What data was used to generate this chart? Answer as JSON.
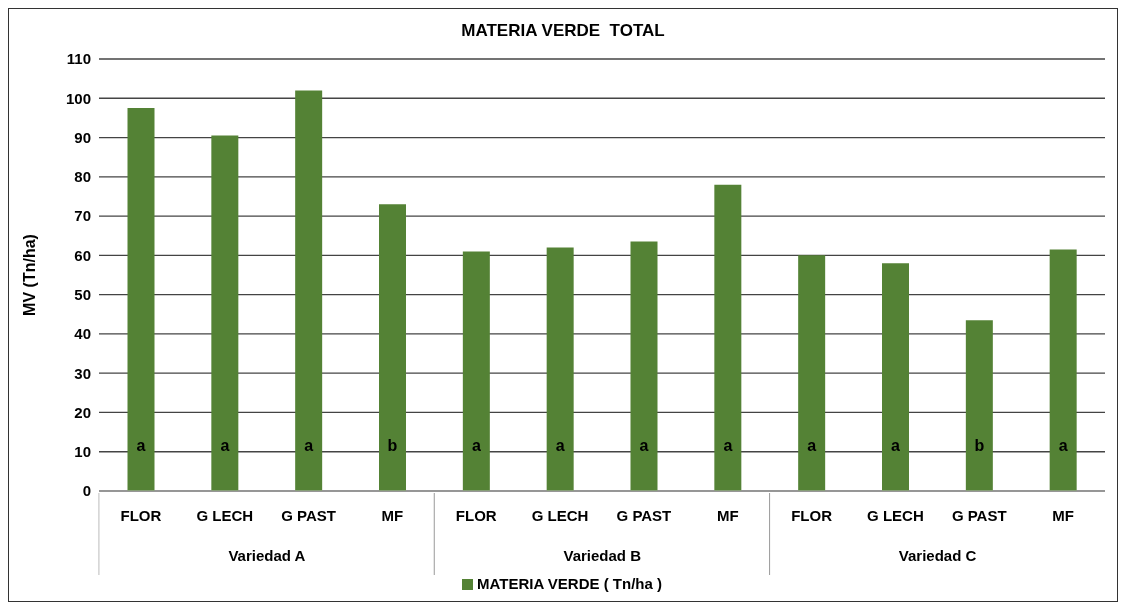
{
  "chart_data": {
    "type": "bar",
    "title": "MATERIA VERDE  TOTAL",
    "ylabel": "MV  (Tn/ha)",
    "categories": [
      "FLOR",
      "G LECH",
      "G PAST",
      "MF",
      "FLOR",
      "G LECH",
      "G PAST",
      "MF",
      "FLOR",
      "G LECH",
      "G PAST",
      "MF"
    ],
    "annotations": [
      "Variedad A",
      "Variedad B",
      "Variedad C"
    ],
    "series": [
      {
        "name": "MATERIA VERDE ( Tn/ha )",
        "color": "#548235",
        "values": [
          97.5,
          90.5,
          102,
          73,
          61,
          62,
          63.5,
          78,
          60,
          58,
          43.5,
          61.5
        ],
        "value_labels": [
          "a",
          "a",
          "a",
          "b",
          "a",
          "a",
          "a",
          "a",
          "a",
          "a",
          "b",
          "a"
        ]
      }
    ],
    "ylim": [
      0,
      110
    ],
    "yticks": [
      0,
      10,
      20,
      30,
      40,
      50,
      60,
      70,
      80,
      90,
      100,
      110
    ],
    "grid": "y",
    "legend": "bottom"
  }
}
